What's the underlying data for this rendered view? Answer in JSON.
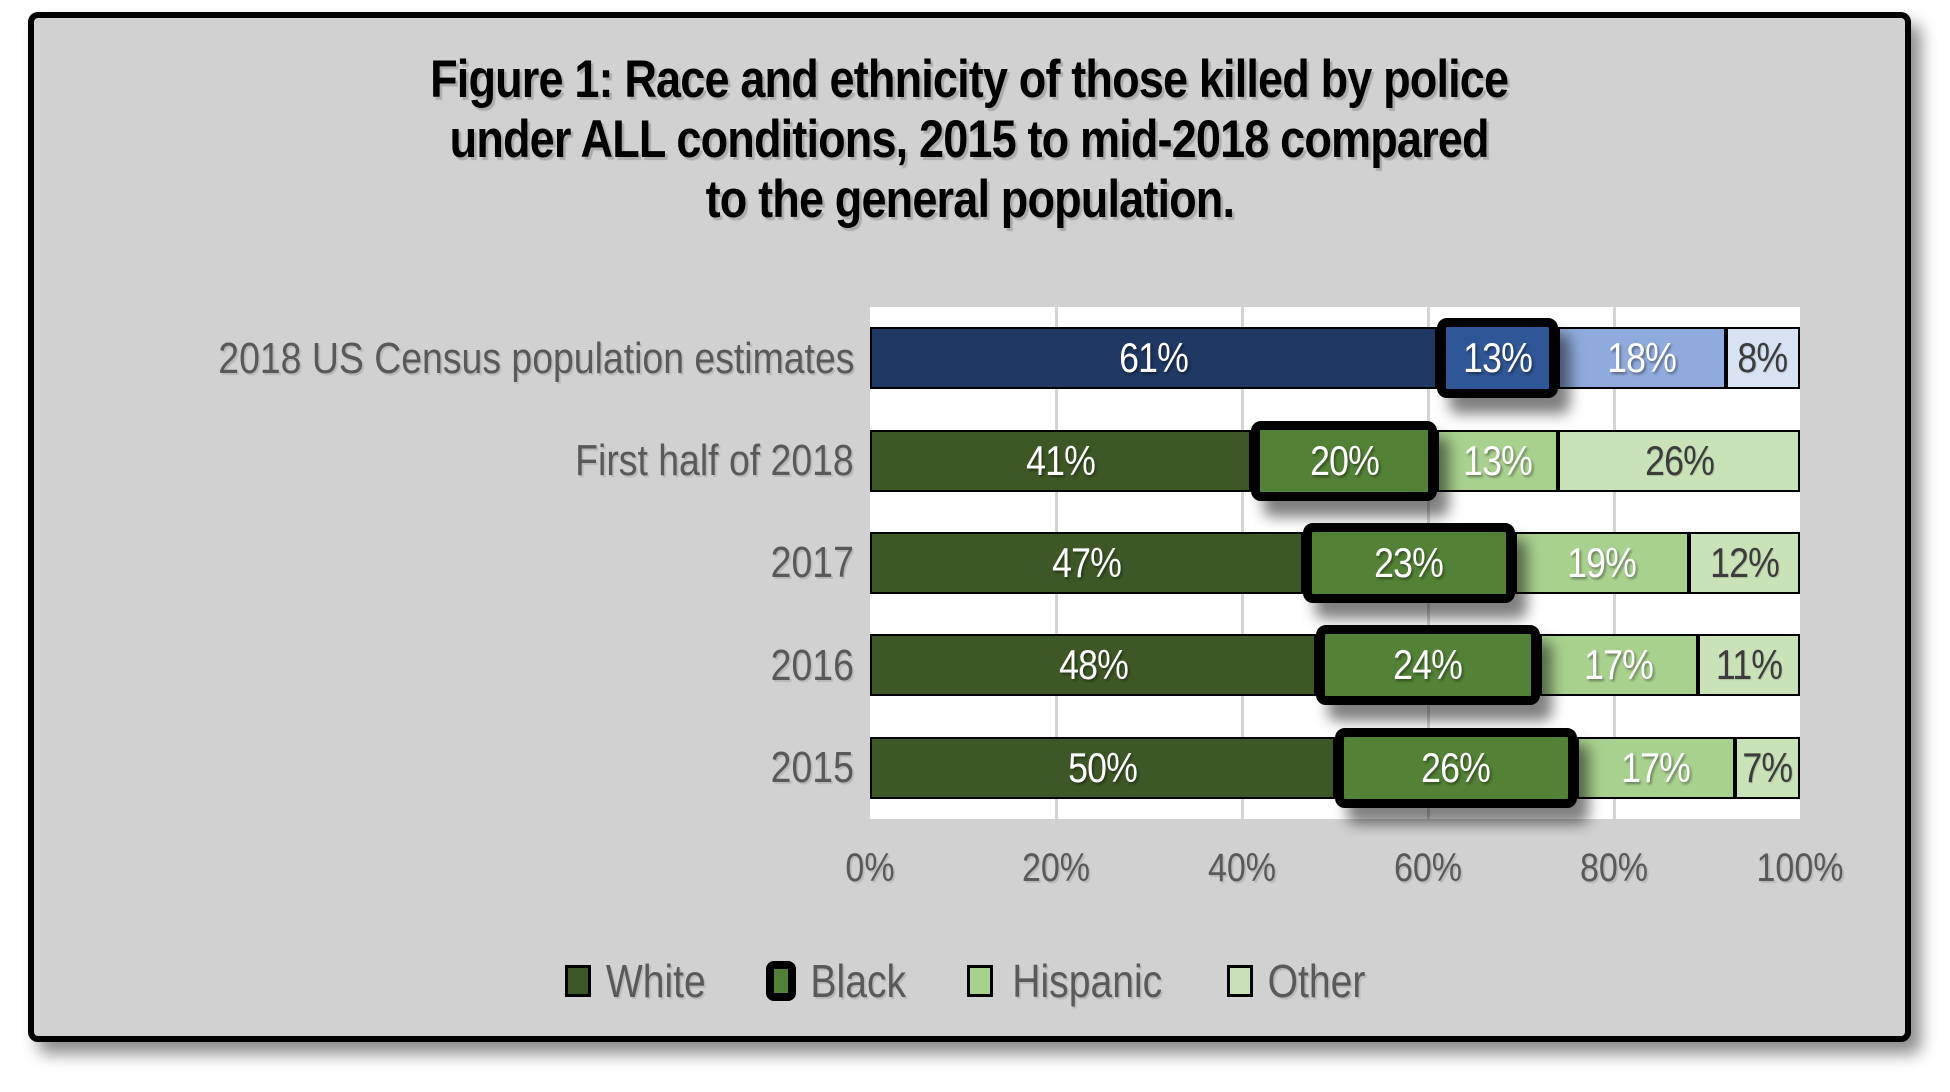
{
  "figure": {
    "title_lines": [
      "Figure 1: Race and ethnicity of those killed by police",
      "under ALL conditions, 2015 to mid-2018 compared",
      "to the general population."
    ]
  },
  "chart_data": {
    "type": "bar",
    "variant": "horizontal-stacked",
    "title": "Figure 1: Race and ethnicity of those killed by police under ALL conditions, 2015 to mid-2018 compared to the general population.",
    "categories": [
      "2018 US Census population estimates",
      "First half of 2018",
      "2017",
      "2016",
      "2015"
    ],
    "series": [
      {
        "name": "White",
        "values": [
          61,
          41,
          47,
          48,
          50
        ],
        "color": "#3D5826",
        "census_color": "#1F3864",
        "label_style": "light",
        "highlighted": false
      },
      {
        "name": "Black",
        "values": [
          13,
          20,
          23,
          24,
          26
        ],
        "color": "#538135",
        "census_color": "#2F5696",
        "label_style": "light",
        "highlighted": true
      },
      {
        "name": "Hispanic",
        "values": [
          18,
          13,
          19,
          17,
          17
        ],
        "color": "#A9D18E",
        "census_color": "#8FAADC",
        "label_style": "light",
        "highlighted": false
      },
      {
        "name": "Other",
        "values": [
          8,
          26,
          12,
          11,
          7
        ],
        "color": "#C9E2B8",
        "census_color": "#D8E2F3",
        "label_style": "dark",
        "highlighted": false
      }
    ],
    "value_suffix": "%",
    "x_ticks": [
      "0%",
      "20%",
      "40%",
      "60%",
      "80%",
      "100%"
    ],
    "xlim": [
      0,
      100
    ],
    "grid": "vertical",
    "gridline_percents": [
      20,
      40,
      60,
      80
    ],
    "legend_position": "bottom",
    "legend_entries": [
      "White",
      "Black",
      "Hispanic",
      "Other"
    ],
    "colors": {
      "panel_background": "#d1d1d1",
      "plot_background": "#ffffff",
      "frame_border": "#000000",
      "axis_text": "#595959",
      "gridline": "#d4d4d4"
    }
  }
}
